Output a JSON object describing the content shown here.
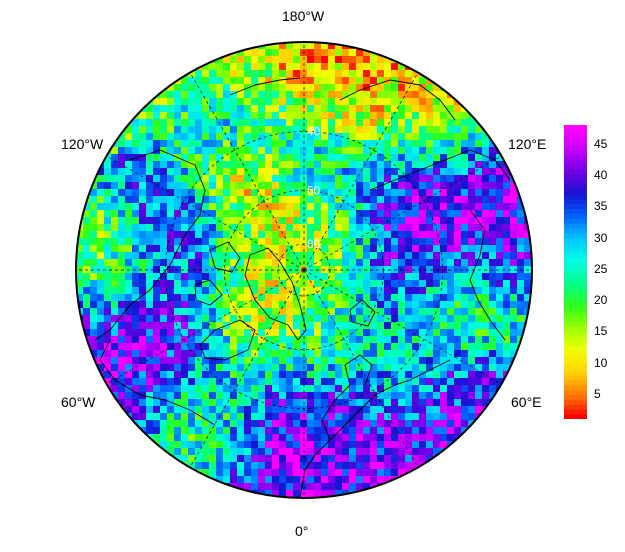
{
  "map": {
    "projection": "north-polar-stereographic",
    "longitude_labels": {
      "top": "180°W",
      "upper_left": "120°W",
      "upper_right": "120°E",
      "lower_left": "60°W",
      "lower_right": "60°E",
      "bottom": "0°"
    },
    "latitude_labels": [
      "40",
      "60",
      "80"
    ],
    "latitude_rings": [
      40,
      60,
      80
    ],
    "longitude_lines_every_deg": 30
  },
  "colorbar": {
    "ticks": [
      "45",
      "40",
      "35",
      "30",
      "25",
      "20",
      "15",
      "10",
      "5"
    ],
    "range": [
      1,
      48
    ],
    "colors": [
      "#ff0000",
      "#ff7a00",
      "#ffd200",
      "#f2ff00",
      "#9cff00",
      "#2cff1a",
      "#00ff8c",
      "#00ffe2",
      "#00c8ff",
      "#0064ff",
      "#1414d2",
      "#6e00e6",
      "#c400ff",
      "#ff00ff"
    ]
  }
}
